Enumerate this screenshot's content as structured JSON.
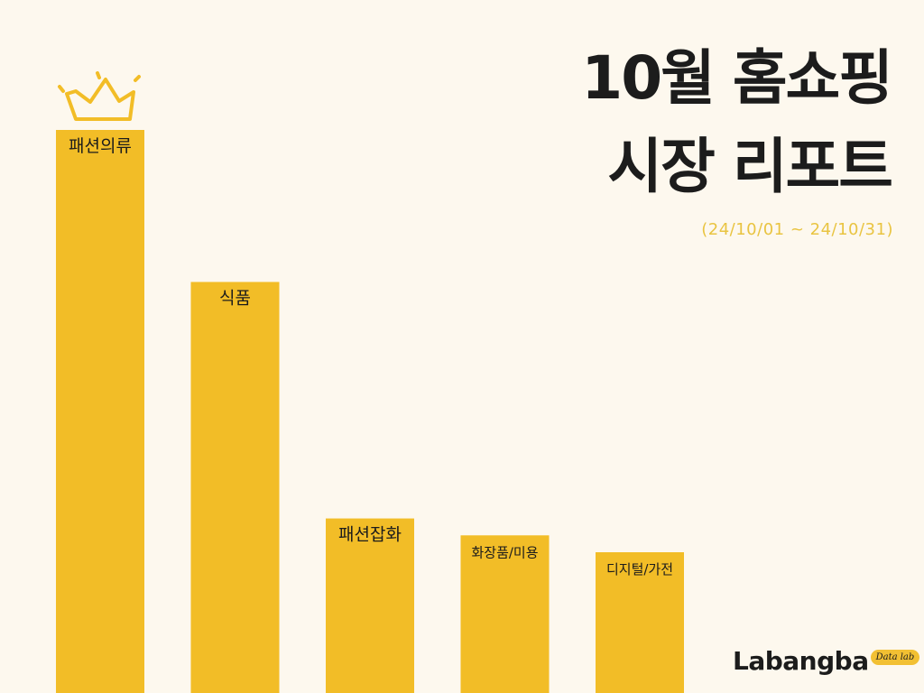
{
  "title": {
    "line1": "10월 홈쇼핑",
    "line2": "시장 리포트"
  },
  "subtitle": "(24/10/01 ~ 24/10/31)",
  "logo": {
    "word": "Labangba",
    "tag": "Data lab"
  },
  "icons": {
    "crown": "crown-icon"
  },
  "colors": {
    "background": "#fdf8ee",
    "bar": "#f2bd27",
    "crown": "#f2bd27",
    "text": "#1c1c1c",
    "subtitle": "#e9c441"
  },
  "chart_data": {
    "type": "bar",
    "categories": [
      "패션의류",
      "식품",
      "패션잡화",
      "화장품/미용",
      "디지털/가전"
    ],
    "values": [
      100,
      73,
      31,
      28,
      25
    ],
    "value_unit": "relative bar height (no axis shown)",
    "title": "10월 홈쇼핑 시장 리포트",
    "xlabel": "",
    "ylabel": "",
    "ylim": [
      0,
      100
    ],
    "grid": false,
    "legend": "none",
    "axes_visible": false
  }
}
